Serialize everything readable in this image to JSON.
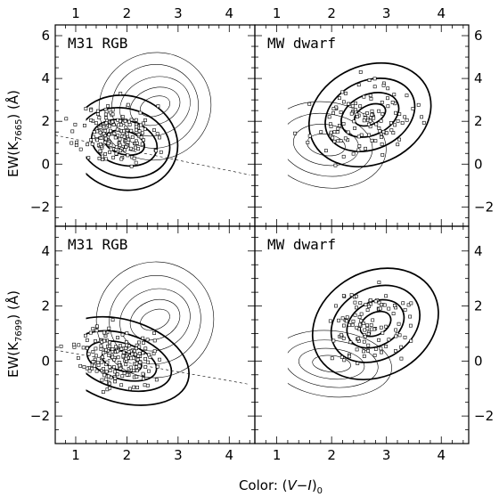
{
  "chart_data": [
    {
      "type": "scatter",
      "label": "M31 RGB",
      "ylabel": "EW(K7665) (Å)",
      "xlabel": "",
      "xlim": [
        0.6,
        4.5
      ],
      "ylim": [
        -2.9,
        6.5
      ],
      "xticks": [
        1,
        2,
        3,
        4
      ],
      "yticks": [
        -2,
        0,
        2,
        4,
        6
      ],
      "points": {
        "center": [
          1.8,
          1.4
        ],
        "spread": [
          0.35,
          0.7
        ],
        "tilt": -0.1,
        "count": 190,
        "seed": 11
      },
      "thick_contours": {
        "center": [
          1.95,
          1.0
        ],
        "rx": [
          0.4,
          0.65,
          0.9,
          1.05
        ],
        "ry": [
          0.55,
          1.05,
          1.6,
          2.2
        ],
        "tilt": -0.25,
        "xmin": 1.2
      },
      "thin_contours": {
        "center": [
          2.55,
          2.7
        ],
        "rx": [
          0.3,
          0.5,
          0.7,
          0.85,
          1.1
        ],
        "ry": [
          0.45,
          0.85,
          1.35,
          1.95,
          2.5
        ],
        "tilt": 0.35
      },
      "fit_line": {
        "from": [
          0.6,
          1.35
        ],
        "to": [
          4.4,
          -0.5
        ]
      }
    },
    {
      "type": "scatter",
      "label": "MW dwarf",
      "xlabel": "",
      "xlim": [
        0.6,
        4.5
      ],
      "ylim": [
        -2.9,
        6.5
      ],
      "xticks": [
        1,
        2,
        3,
        4
      ],
      "yticks": [
        -2,
        0,
        2,
        4,
        6
      ],
      "points": {
        "center": [
          2.55,
          2.0
        ],
        "spread": [
          0.45,
          0.75
        ],
        "tilt": 0.3,
        "count": 120,
        "seed": 23
      },
      "thick_contours": {
        "center": [
          2.7,
          2.3
        ],
        "rx": [
          0.3,
          0.55,
          0.85,
          1.15
        ],
        "ry": [
          0.45,
          0.95,
          1.6,
          2.3
        ],
        "tilt": 0.45
      },
      "thin_contours": {
        "center": [
          1.9,
          0.9
        ],
        "rx": [
          0.35,
          0.6,
          0.85,
          1.1
        ],
        "ry": [
          0.5,
          0.95,
          1.45,
          2.0
        ],
        "tilt": -0.15,
        "xmin": 1.2
      }
    },
    {
      "type": "scatter",
      "label": "M31 RGB",
      "ylabel": "EW(K7699) (Å)",
      "xlabel": "",
      "xlim": [
        0.6,
        4.5
      ],
      "ylim": [
        -3.0,
        4.9
      ],
      "xticks": [
        1,
        2,
        3,
        4
      ],
      "yticks": [
        -2,
        0,
        2,
        4
      ],
      "points": {
        "center": [
          1.8,
          0.15
        ],
        "spread": [
          0.35,
          0.55
        ],
        "tilt": -0.15,
        "count": 200,
        "seed": 37
      },
      "thick_contours": {
        "center": [
          1.9,
          0.0
        ],
        "rx": [
          0.4,
          0.7,
          1.0,
          1.35
        ],
        "ry": [
          0.35,
          0.65,
          1.0,
          1.5
        ],
        "tilt": -0.3,
        "xmin": 1.2
      },
      "thin_contours": {
        "center": [
          2.55,
          1.5
        ],
        "rx": [
          0.3,
          0.5,
          0.7,
          0.9,
          1.15
        ],
        "ry": [
          0.35,
          0.7,
          1.1,
          1.6,
          2.1
        ],
        "tilt": 0.4
      },
      "fit_line": {
        "from": [
          0.6,
          0.4
        ],
        "to": [
          4.4,
          -0.85
        ]
      }
    },
    {
      "type": "scatter",
      "label": "MW dwarf",
      "xlabel": "Color: (V−I)0",
      "xlim": [
        0.6,
        4.5
      ],
      "ylim": [
        -3.0,
        4.9
      ],
      "xticks": [
        1,
        2,
        3,
        4
      ],
      "yticks": [
        -2,
        0,
        2,
        4
      ],
      "points": {
        "center": [
          2.65,
          1.25
        ],
        "spread": [
          0.4,
          0.7
        ],
        "tilt": 0.45,
        "count": 110,
        "seed": 51
      },
      "thick_contours": {
        "center": [
          2.8,
          1.35
        ],
        "rx": [
          0.3,
          0.55,
          0.85,
          1.2
        ],
        "ry": [
          0.4,
          0.8,
          1.3,
          1.9
        ],
        "tilt": 0.55
      },
      "thin_contours": {
        "center": [
          2.0,
          -0.1
        ],
        "rx": [
          0.35,
          0.6,
          0.85,
          1.1
        ],
        "ry": [
          0.3,
          0.55,
          0.85,
          1.2
        ],
        "tilt": -0.1,
        "xmin": 1.2
      }
    }
  ]
}
